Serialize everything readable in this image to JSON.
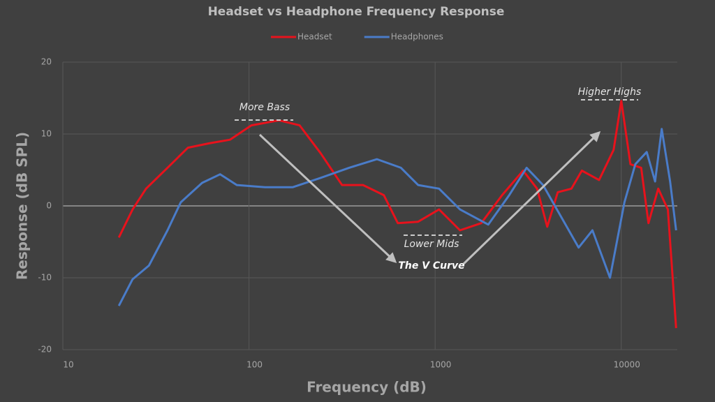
{
  "chart_data": {
    "type": "line",
    "title": "Headset vs Headphone Frequency Response",
    "x_label": "Frequency (dB)",
    "y_label": "Response (dB SPL)",
    "xscale": "log",
    "xlim": [
      10,
      20000
    ],
    "xticks": [
      10,
      100,
      1000,
      10000
    ],
    "ylim": [
      -20,
      20
    ],
    "yticks": [
      -20,
      -10,
      0,
      10,
      20
    ],
    "grid": true,
    "annotations": [
      "More Bass",
      "Lower Mids",
      "The V Curve",
      "Higher Highs"
    ],
    "series": [
      {
        "name": "Headset",
        "color": "#e8121c",
        "x": [
          20,
          23.7,
          28,
          36.5,
          47,
          61,
          79,
          103,
          145,
          187,
          243,
          316,
          410,
          530,
          630,
          810,
          1050,
          1360,
          1770,
          2290,
          2970,
          3530,
          4000,
          4560,
          5400,
          6140,
          7600,
          9100,
          10000,
          11200,
          12800,
          14000,
          15800,
          17800,
          18900,
          19700
        ],
        "values": [
          -4.4,
          -0.5,
          2.4,
          5.3,
          8.1,
          8.7,
          9.2,
          11.2,
          11.9,
          11.2,
          7.3,
          2.9,
          2.9,
          1.5,
          -2.4,
          -2.2,
          -0.5,
          -3.4,
          -2.4,
          1.5,
          4.9,
          2.4,
          -2.9,
          1.9,
          2.4,
          4.9,
          3.6,
          7.8,
          14.6,
          5.8,
          5.3,
          -2.4,
          2.4,
          -0.5,
          -10.2,
          -17
        ]
      },
      {
        "name": "Headphones",
        "color": "#4a7cc9",
        "x": [
          20,
          23.7,
          29,
          36.5,
          43,
          56,
          70,
          86,
          122,
          172,
          243,
          345,
          487,
          655,
          810,
          1050,
          1360,
          1930,
          2500,
          3100,
          3800,
          4970,
          5900,
          7000,
          8700,
          10400,
          11900,
          13700,
          15200,
          16500,
          18300,
          19700
        ],
        "values": [
          -13.9,
          -10.2,
          -8.3,
          -3.4,
          0.5,
          3.2,
          4.4,
          2.9,
          2.6,
          2.6,
          3.9,
          5.3,
          6.5,
          5.3,
          2.9,
          2.4,
          -0.5,
          -2.6,
          1.5,
          5.3,
          2.9,
          -2.4,
          -5.8,
          -3.4,
          -10,
          0.5,
          5.8,
          7.5,
          3.4,
          10.7,
          3.4,
          -3.4
        ]
      }
    ]
  }
}
